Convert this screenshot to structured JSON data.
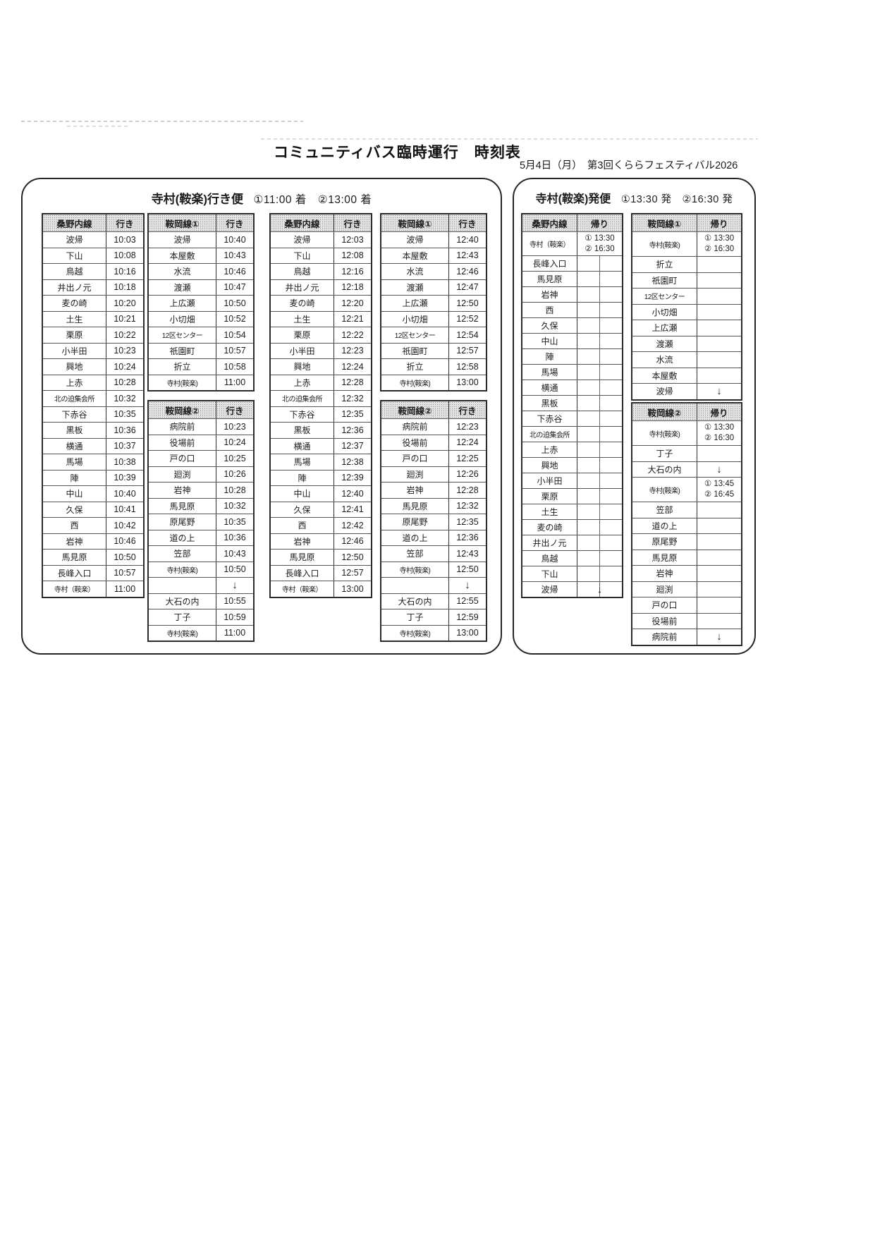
{
  "page": {
    "title": "コミュニティバス臨時運行　時刻表",
    "date_note": "5月4日（月）　第3回くららフェスティバル2026"
  },
  "icons": {
    "down_arrow": "↓"
  },
  "colors": {
    "ink": "#1c1c1c",
    "table_border": "#2b2b2b",
    "header_bg": "#e2e2e2"
  },
  "arrival_box": {
    "title": "寺村(鞍楽)行き便",
    "title_times": "①11:00 着　②13:00 着",
    "tables": [
      {
        "line": "桑野内線",
        "direction": "行き",
        "rows": [
          {
            "station": "波帰",
            "time": "10:03"
          },
          {
            "station": "下山",
            "time": "10:08"
          },
          {
            "station": "鳥越",
            "time": "10:16"
          },
          {
            "station": "井出ノ元",
            "time": "10:18"
          },
          {
            "station": "麦の崎",
            "time": "10:20"
          },
          {
            "station": "土生",
            "time": "10:21"
          },
          {
            "station": "栗原",
            "time": "10:22"
          },
          {
            "station": "小半田",
            "time": "10:23"
          },
          {
            "station": "興地",
            "time": "10:24"
          },
          {
            "station": "上赤",
            "time": "10:28"
          },
          {
            "station": "北の迫集会所",
            "time": "10:32"
          },
          {
            "station": "下赤谷",
            "time": "10:35"
          },
          {
            "station": "黒板",
            "time": "10:36"
          },
          {
            "station": "横通",
            "time": "10:37"
          },
          {
            "station": "馬場",
            "time": "10:38"
          },
          {
            "station": "陣",
            "time": "10:39"
          },
          {
            "station": "中山",
            "time": "10:40"
          },
          {
            "station": "久保",
            "time": "10:41"
          },
          {
            "station": "西",
            "time": "10:42"
          },
          {
            "station": "岩神",
            "time": "10:46"
          },
          {
            "station": "馬見原",
            "time": "10:50"
          },
          {
            "station": "長峰入口",
            "time": "10:57"
          },
          {
            "station": "寺村（鞍楽）",
            "time": "11:00"
          }
        ]
      },
      {
        "line": "鞍岡線①",
        "direction": "行き",
        "rows": [
          {
            "station": "波帰",
            "time": "10:40"
          },
          {
            "station": "本屋敷",
            "time": "10:43"
          },
          {
            "station": "水流",
            "time": "10:46"
          },
          {
            "station": "渡瀬",
            "time": "10:47"
          },
          {
            "station": "上広瀬",
            "time": "10:50"
          },
          {
            "station": "小切畑",
            "time": "10:52"
          },
          {
            "station": "12区センター",
            "time": "10:54"
          },
          {
            "station": "祇園町",
            "time": "10:57"
          },
          {
            "station": "折立",
            "time": "10:58"
          },
          {
            "station": "寺村(鞍楽)",
            "time": "11:00"
          }
        ]
      },
      {
        "line": "鞍岡線②",
        "direction": "行き",
        "rows": [
          {
            "station": "病院前",
            "time": "10:23"
          },
          {
            "station": "役場前",
            "time": "10:24"
          },
          {
            "station": "戸の口",
            "time": "10:25"
          },
          {
            "station": "廻渕",
            "time": "10:26"
          },
          {
            "station": "岩神",
            "time": "10:28"
          },
          {
            "station": "馬見原",
            "time": "10:32"
          },
          {
            "station": "原尾野",
            "time": "10:35"
          },
          {
            "station": "道の上",
            "time": "10:36"
          },
          {
            "station": "笠部",
            "time": "10:43"
          },
          {
            "station": "寺村(鞍楽)",
            "time": "10:50"
          },
          {
            "station": "",
            "time": "",
            "arrow": true
          },
          {
            "station": "大石の内",
            "time": "10:55"
          },
          {
            "station": "丁子",
            "time": "10:59"
          },
          {
            "station": "寺村(鞍楽)",
            "time": "11:00"
          }
        ]
      },
      {
        "line": "桑野内線",
        "direction": "行き",
        "rows": [
          {
            "station": "波帰",
            "time": "12:03"
          },
          {
            "station": "下山",
            "time": "12:08"
          },
          {
            "station": "鳥越",
            "time": "12:16"
          },
          {
            "station": "井出ノ元",
            "time": "12:18"
          },
          {
            "station": "麦の崎",
            "time": "12:20"
          },
          {
            "station": "土生",
            "time": "12:21"
          },
          {
            "station": "栗原",
            "time": "12:22"
          },
          {
            "station": "小半田",
            "time": "12:23"
          },
          {
            "station": "興地",
            "time": "12:24"
          },
          {
            "station": "上赤",
            "time": "12:28"
          },
          {
            "station": "北の迫集会所",
            "time": "12:32"
          },
          {
            "station": "下赤谷",
            "time": "12:35"
          },
          {
            "station": "黒板",
            "time": "12:36"
          },
          {
            "station": "横通",
            "time": "12:37"
          },
          {
            "station": "馬場",
            "time": "12:38"
          },
          {
            "station": "陣",
            "time": "12:39"
          },
          {
            "station": "中山",
            "time": "12:40"
          },
          {
            "station": "久保",
            "time": "12:41"
          },
          {
            "station": "西",
            "time": "12:42"
          },
          {
            "station": "岩神",
            "time": "12:46"
          },
          {
            "station": "馬見原",
            "time": "12:50"
          },
          {
            "station": "長峰入口",
            "time": "12:57"
          },
          {
            "station": "寺村（鞍楽）",
            "time": "13:00"
          }
        ]
      },
      {
        "line": "鞍岡線①",
        "direction": "行き",
        "rows": [
          {
            "station": "波帰",
            "time": "12:40"
          },
          {
            "station": "本屋敷",
            "time": "12:43"
          },
          {
            "station": "水流",
            "time": "12:46"
          },
          {
            "station": "渡瀬",
            "time": "12:47"
          },
          {
            "station": "上広瀬",
            "time": "12:50"
          },
          {
            "station": "小切畑",
            "time": "12:52"
          },
          {
            "station": "12区センター",
            "time": "12:54"
          },
          {
            "station": "祇園町",
            "time": "12:57"
          },
          {
            "station": "折立",
            "time": "12:58"
          },
          {
            "station": "寺村(鞍楽)",
            "time": "13:00"
          }
        ]
      },
      {
        "line": "鞍岡線②",
        "direction": "行き",
        "rows": [
          {
            "station": "病院前",
            "time": "12:23"
          },
          {
            "station": "役場前",
            "time": "12:24"
          },
          {
            "station": "戸の口",
            "time": "12:25"
          },
          {
            "station": "廻渕",
            "time": "12:26"
          },
          {
            "station": "岩神",
            "time": "12:28"
          },
          {
            "station": "馬見原",
            "time": "12:32"
          },
          {
            "station": "原尾野",
            "time": "12:35"
          },
          {
            "station": "道の上",
            "time": "12:36"
          },
          {
            "station": "笠部",
            "time": "12:43"
          },
          {
            "station": "寺村(鞍楽)",
            "time": "12:50"
          },
          {
            "station": "",
            "time": "",
            "arrow": true
          },
          {
            "station": "大石の内",
            "time": "12:55"
          },
          {
            "station": "丁子",
            "time": "12:59"
          },
          {
            "station": "寺村(鞍楽)",
            "time": "13:00"
          }
        ]
      }
    ]
  },
  "departure_box": {
    "title": "寺村(鞍楽)発便",
    "title_times": "①13:30 発　②16:30 発",
    "tables": [
      {
        "line": "桑野内線",
        "direction": "帰り",
        "split": true,
        "rows": [
          {
            "station": "寺村（鞍楽）",
            "times": [
              "① 13:30",
              "② 16:30"
            ]
          },
          {
            "station": "長峰入口"
          },
          {
            "station": "馬見原"
          },
          {
            "station": "岩神"
          },
          {
            "station": "西"
          },
          {
            "station": "久保"
          },
          {
            "station": "中山"
          },
          {
            "station": "陣"
          },
          {
            "station": "馬場"
          },
          {
            "station": "横通"
          },
          {
            "station": "黒板"
          },
          {
            "station": "下赤谷"
          },
          {
            "station": "北の迫集会所"
          },
          {
            "station": "上赤"
          },
          {
            "station": "興地"
          },
          {
            "station": "小半田"
          },
          {
            "station": "栗原"
          },
          {
            "station": "土生"
          },
          {
            "station": "麦の崎"
          },
          {
            "station": "井出ノ元"
          },
          {
            "station": "鳥越"
          },
          {
            "station": "下山"
          },
          {
            "station": "波帰",
            "arrow": true
          }
        ]
      },
      {
        "line": "鞍岡線①",
        "direction": "帰り",
        "rows": [
          {
            "station": "寺村(鞍楽)",
            "times": [
              "① 13:30",
              "② 16:30"
            ]
          },
          {
            "station": "折立"
          },
          {
            "station": "祇園町"
          },
          {
            "station": "12区センター"
          },
          {
            "station": "小切畑"
          },
          {
            "station": "上広瀬"
          },
          {
            "station": "渡瀬"
          },
          {
            "station": "水流"
          },
          {
            "station": "本屋敷"
          },
          {
            "station": "波帰",
            "arrow": true
          }
        ]
      },
      {
        "line": "鞍岡線②",
        "direction": "帰り",
        "rows": [
          {
            "station": "寺村(鞍楽)",
            "times": [
              "① 13:30",
              "② 16:30"
            ]
          },
          {
            "station": "丁子"
          },
          {
            "station": "大石の内",
            "arrow": true
          },
          {
            "station": "寺村(鞍楽)",
            "times": [
              "① 13:45",
              "② 16:45"
            ]
          },
          {
            "station": "笠部"
          },
          {
            "station": "道の上"
          },
          {
            "station": "原尾野"
          },
          {
            "station": "馬見原"
          },
          {
            "station": "岩神"
          },
          {
            "station": "廻渕"
          },
          {
            "station": "戸の口"
          },
          {
            "station": "役場前"
          },
          {
            "station": "病院前",
            "arrow": true
          }
        ]
      }
    ]
  }
}
